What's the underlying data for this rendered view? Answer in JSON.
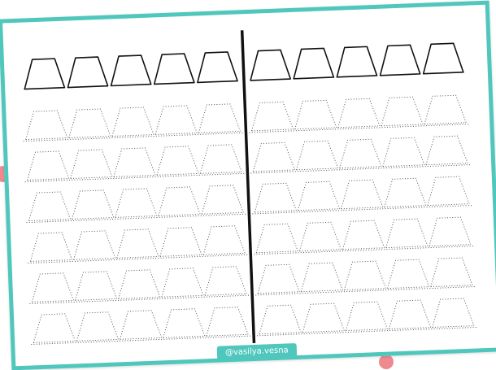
{
  "watermark": "@vasilya.vesna",
  "colors": {
    "frame": "#4fc7bd",
    "accent_dot": "#ee8a8f",
    "divider": "#111111",
    "trace": "#555555"
  },
  "worksheet": {
    "shape": "trapezoid-icon",
    "columns_per_half": 5,
    "traced_rows": 6
  }
}
